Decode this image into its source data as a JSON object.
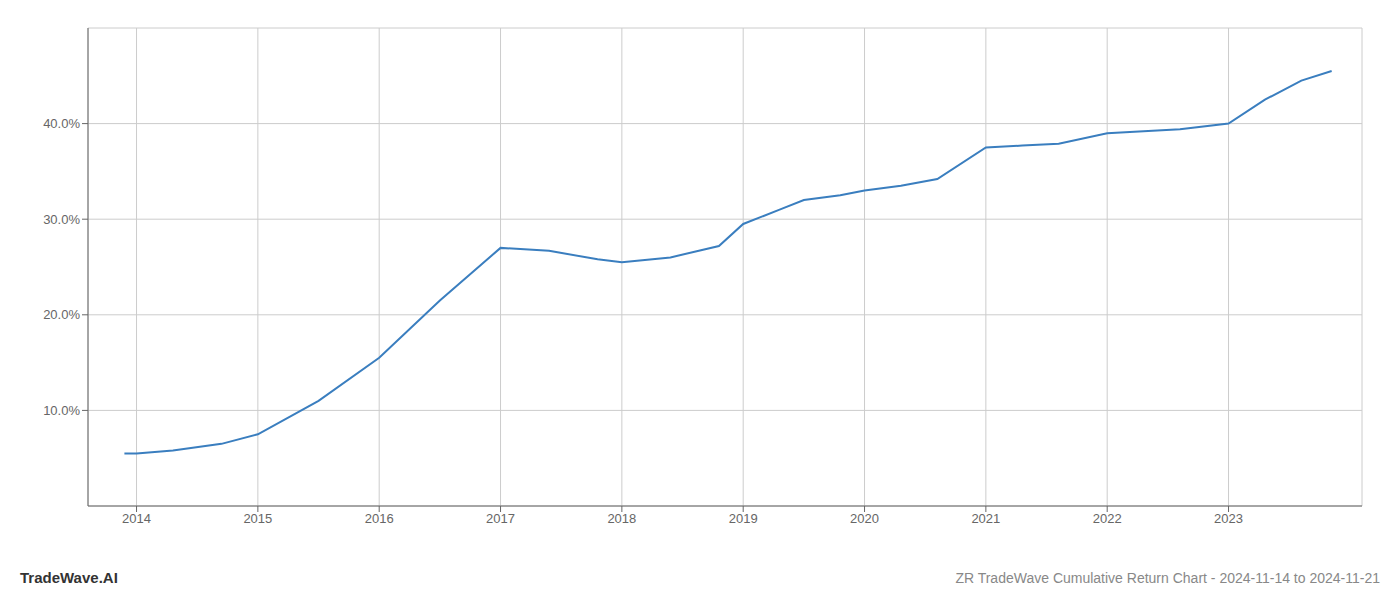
{
  "chart_data": {
    "type": "line",
    "x": [
      2013.9,
      2014.0,
      2014.3,
      2014.7,
      2015.0,
      2015.5,
      2016.0,
      2016.5,
      2017.0,
      2017.4,
      2017.8,
      2018.0,
      2018.4,
      2018.8,
      2019.0,
      2019.3,
      2019.5,
      2019.8,
      2020.0,
      2020.3,
      2020.6,
      2021.0,
      2021.3,
      2021.6,
      2022.0,
      2022.3,
      2022.6,
      2023.0,
      2023.3,
      2023.6,
      2023.85
    ],
    "values": [
      5.5,
      5.5,
      5.8,
      6.5,
      7.5,
      11.0,
      15.5,
      21.5,
      27.0,
      26.7,
      25.8,
      25.5,
      26.0,
      27.2,
      29.5,
      31.0,
      32.0,
      32.5,
      33.0,
      33.5,
      34.2,
      37.5,
      37.7,
      37.9,
      39.0,
      39.2,
      39.4,
      40.0,
      42.5,
      44.5,
      45.5
    ],
    "color": "#3a7ebf",
    "xlim": [
      2013.6,
      2024.1
    ],
    "ylim": [
      0,
      50
    ],
    "xticks": [
      2014,
      2015,
      2016,
      2017,
      2018,
      2019,
      2020,
      2021,
      2022,
      2023
    ],
    "yticks": [
      {
        "value": 10.0,
        "label": "10.0%"
      },
      {
        "value": 20.0,
        "label": "20.0%"
      },
      {
        "value": 30.0,
        "label": "30.0%"
      },
      {
        "value": 40.0,
        "label": "40.0%"
      }
    ],
    "grid": true,
    "annotations": [
      "TradeWave.AI",
      "ZR TradeWave Cumulative Return Chart - 2024-11-14 to 2024-11-21"
    ]
  }
}
